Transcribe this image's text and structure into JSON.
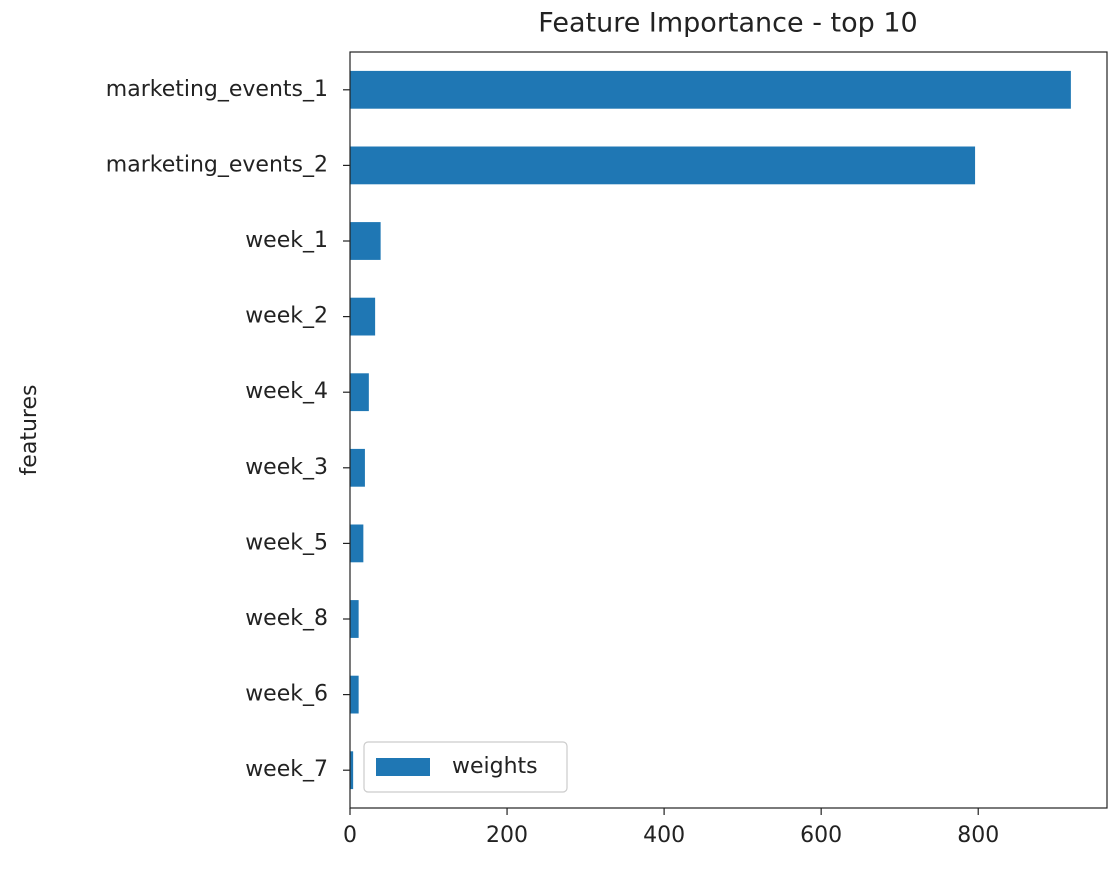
{
  "chart_data": {
    "type": "barh",
    "title": "Feature Importance - top 10",
    "ylabel": "features",
    "categories": [
      "marketing_events_1",
      "marketing_events_2",
      "week_1",
      "week_2",
      "week_4",
      "week_3",
      "week_5",
      "week_8",
      "week_6",
      "week_7"
    ],
    "series": [
      {
        "name": "weights",
        "color": "#1f77b4",
        "values": [
          918,
          796,
          39,
          32,
          24,
          19,
          17,
          11,
          11,
          4
        ]
      }
    ],
    "xlim": [
      0,
      964
    ],
    "xticks": [
      0,
      200,
      400,
      600,
      800
    ],
    "legend": "lower left"
  }
}
